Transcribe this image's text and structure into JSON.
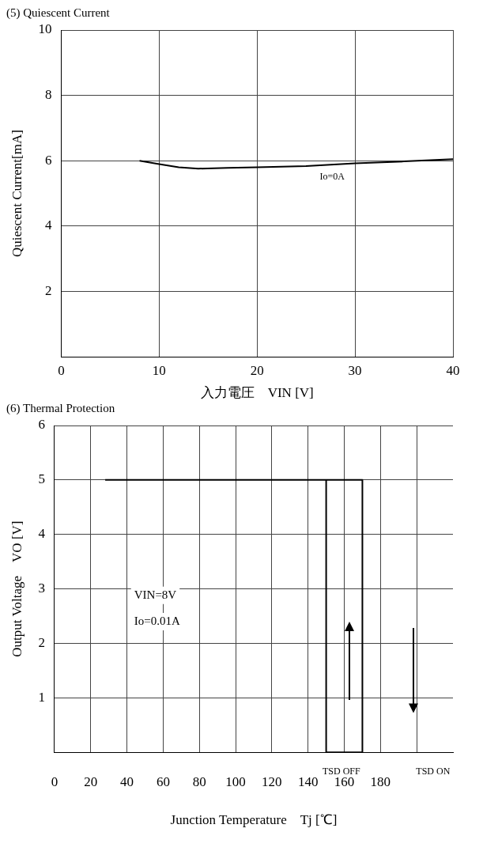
{
  "chart_data": [
    {
      "type": "line",
      "title": "(5) Quiescent Current",
      "xlabel": "入力電圧　VIN [V]",
      "ylabel": "Quiescent Current[mA]",
      "xlim": [
        0,
        40
      ],
      "xticks": [
        0,
        10,
        20,
        30,
        40
      ],
      "ylim": [
        0,
        10
      ],
      "yticks": [
        {
          "value": 0,
          "label": null
        },
        2,
        4,
        6,
        8,
        10
      ],
      "grid": true,
      "legend": false,
      "marker": "none",
      "annotations": [
        "Io=0A"
      ],
      "series": [
        {
          "color": "#000000",
          "x": [
            8,
            10,
            12,
            14,
            17,
            20,
            25,
            30,
            35,
            40
          ],
          "values": [
            6.0,
            5.9,
            5.8,
            5.76,
            5.78,
            5.8,
            5.84,
            5.92,
            5.98,
            6.05
          ]
        }
      ]
    },
    {
      "type": "line",
      "title": "(6) Thermal Protection",
      "xlabel": "Junction Temperature　Tj [℃]",
      "ylabel": "Output Voltage　VO [V]",
      "xlim": [
        0,
        220
      ],
      "xticks": [
        0,
        20,
        40,
        60,
        80,
        100,
        120,
        140,
        160,
        180,
        {
          "value": 200,
          "label": null
        }
      ],
      "ylim": [
        0,
        6
      ],
      "yticks": [
        {
          "value": 0,
          "label": null
        },
        1,
        2,
        3,
        4,
        5,
        6
      ],
      "grid": true,
      "legend": false,
      "marker": "none",
      "annotations": [
        "VIN=8V",
        "Io=0.01A",
        "TSD OFF",
        "TSD ON"
      ],
      "series": [
        {
          "color": "#000000",
          "x": [
            28,
            170,
            170,
            150,
            150
          ],
          "values": [
            5,
            5,
            0,
            0,
            5
          ]
        }
      ]
    }
  ]
}
